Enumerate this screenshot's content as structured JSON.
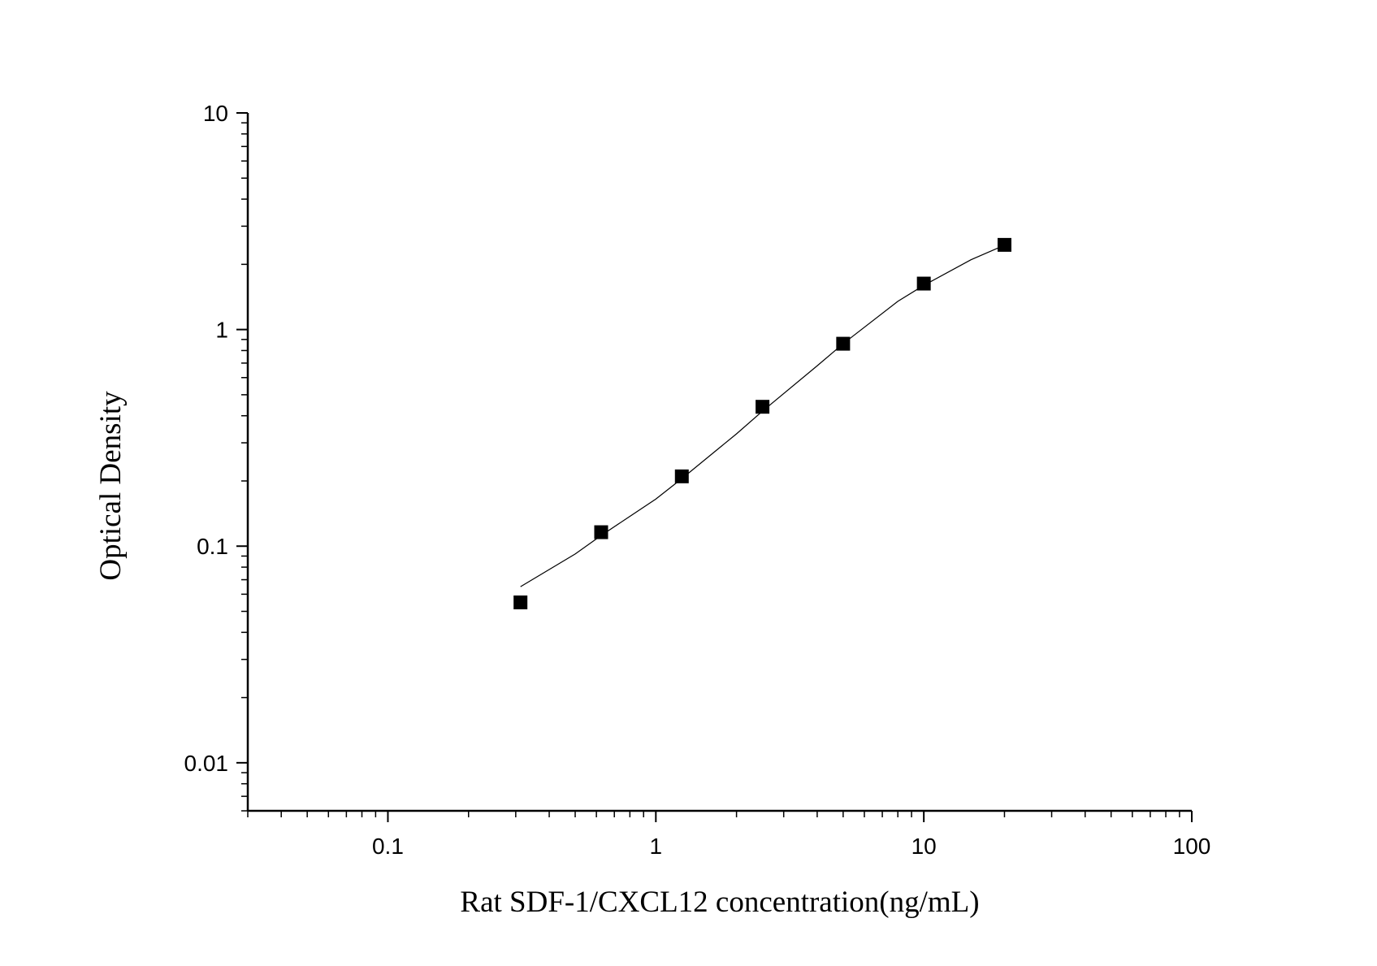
{
  "chart_data": {
    "type": "scatter",
    "x_label": "Rat SDF-1/CXCL12 concentration(ng/mL)",
    "y_label": "Optical Density",
    "x_log": true,
    "y_log": true,
    "xlim": [
      0.03,
      100
    ],
    "ylim": [
      0.006,
      10
    ],
    "xticks": [
      0.1,
      1,
      10,
      100
    ],
    "yticks": [
      0.01,
      0.1,
      1,
      10
    ],
    "x_minor_ticks": [
      0.03,
      0.04,
      0.05,
      0.06,
      0.07,
      0.08,
      0.09,
      0.2,
      0.3,
      0.4,
      0.5,
      0.6,
      0.7,
      0.8,
      0.9,
      2,
      3,
      4,
      5,
      6,
      7,
      8,
      9,
      20,
      30,
      40,
      50,
      60,
      70,
      80,
      90
    ],
    "y_minor_ticks": [
      0.006,
      0.007,
      0.008,
      0.009,
      0.02,
      0.03,
      0.04,
      0.05,
      0.06,
      0.07,
      0.08,
      0.09,
      0.2,
      0.3,
      0.4,
      0.5,
      0.6,
      0.7,
      0.8,
      0.9,
      2,
      3,
      4,
      5,
      6,
      7,
      8,
      9
    ],
    "series": [
      {
        "kind": "points",
        "color": "#000000",
        "x": [
          0.3125,
          0.625,
          1.25,
          2.5,
          5,
          10,
          20
        ],
        "values": [
          0.055,
          0.116,
          0.21,
          0.44,
          0.86,
          1.63,
          2.46
        ]
      },
      {
        "kind": "curve",
        "color": "#000000",
        "x": [
          0.3125,
          0.5,
          0.625,
          1,
          1.25,
          2,
          2.5,
          4,
          5,
          8,
          10,
          15,
          20
        ],
        "values": [
          0.065,
          0.092,
          0.112,
          0.165,
          0.205,
          0.33,
          0.42,
          0.68,
          0.86,
          1.35,
          1.6,
          2.1,
          2.45
        ]
      }
    ]
  }
}
